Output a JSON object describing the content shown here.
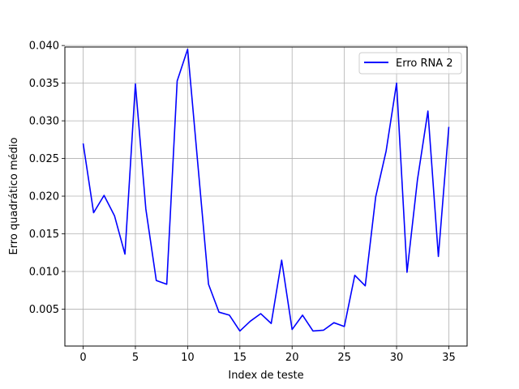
{
  "chart_data": {
    "type": "line",
    "xlabel": "Index de teste",
    "ylabel": "Erro quadrático médio",
    "xlim": [
      -1.75,
      36.75
    ],
    "ylim": [
      0.0001,
      0.0398
    ],
    "grid": true,
    "legend_position": "top-right",
    "xticks": [
      0,
      5,
      10,
      15,
      20,
      25,
      30,
      35
    ],
    "xtick_labels": [
      "0",
      "5",
      "10",
      "15",
      "20",
      "25",
      "30",
      "35"
    ],
    "yticks": [
      0.005,
      0.01,
      0.015,
      0.02,
      0.025,
      0.03,
      0.035,
      0.04
    ],
    "ytick_labels": [
      "0.005",
      "0.010",
      "0.015",
      "0.020",
      "0.025",
      "0.030",
      "0.035",
      "0.040"
    ],
    "series": [
      {
        "name": "Erro RNA 2",
        "color": "#0000ff",
        "x": [
          0,
          1,
          2,
          3,
          4,
          5,
          6,
          7,
          8,
          9,
          10,
          11,
          12,
          13,
          14,
          15,
          16,
          17,
          18,
          19,
          20,
          21,
          22,
          23,
          24,
          25,
          26,
          27,
          28,
          29,
          30,
          31,
          32,
          33,
          34,
          35
        ],
        "values": [
          0.027,
          0.0178,
          0.0201,
          0.0174,
          0.0123,
          0.0349,
          0.0183,
          0.0088,
          0.0083,
          0.0353,
          0.0395,
          0.0239,
          0.0083,
          0.0046,
          0.0042,
          0.0021,
          0.0034,
          0.0044,
          0.0031,
          0.0115,
          0.0023,
          0.0042,
          0.0021,
          0.0022,
          0.0032,
          0.0027,
          0.0095,
          0.0081,
          0.0199,
          0.026,
          0.035,
          0.0099,
          0.0222,
          0.0313,
          0.012,
          0.0292
        ]
      }
    ]
  }
}
